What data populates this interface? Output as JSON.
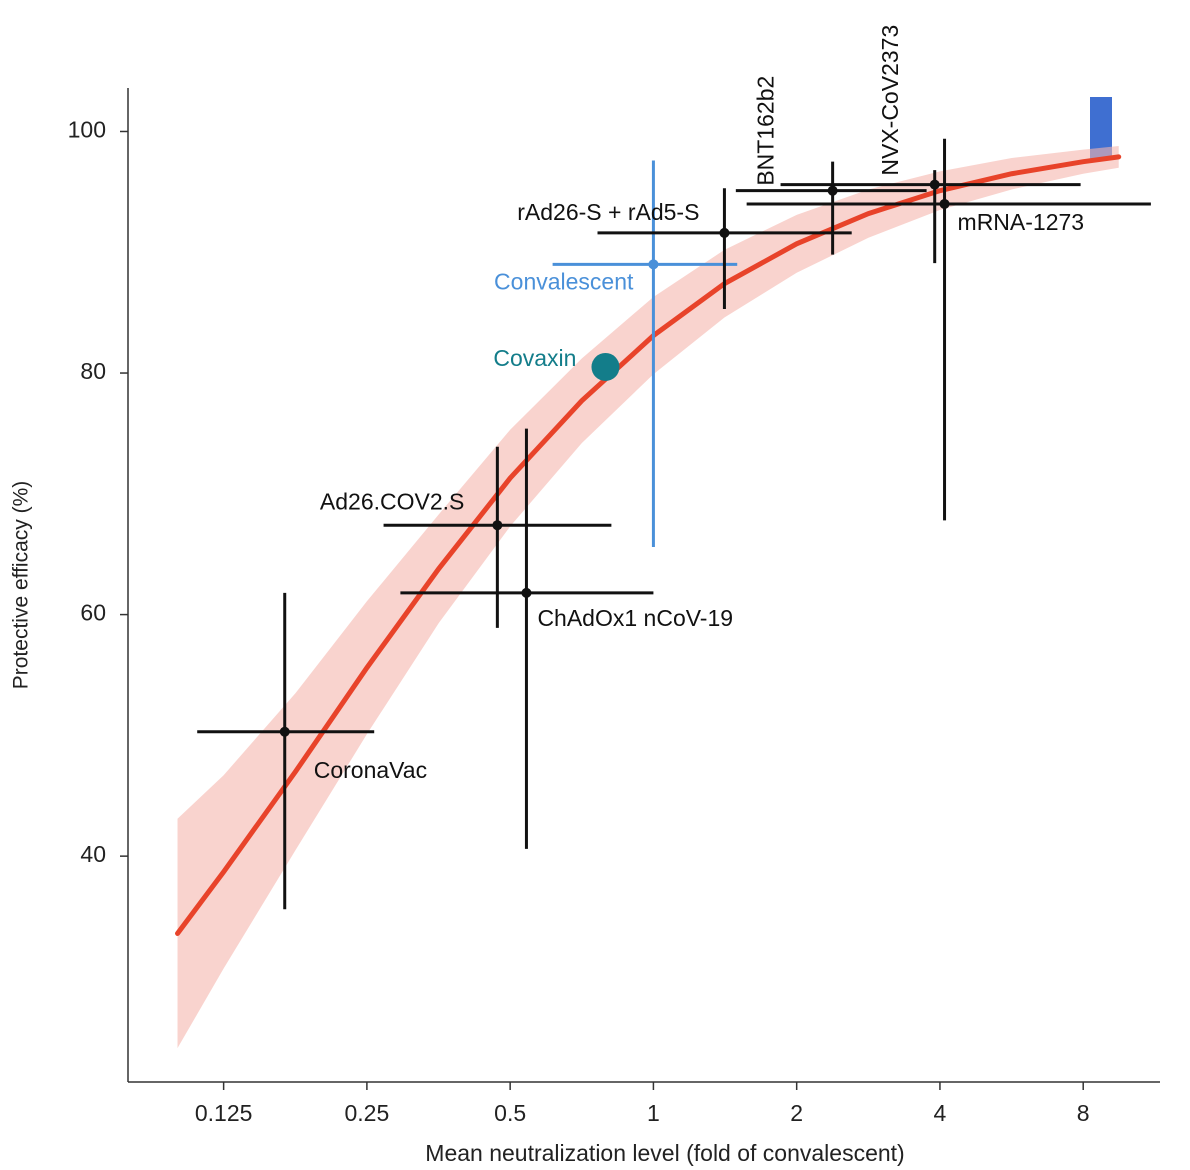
{
  "chart_data": {
    "type": "scatter",
    "x_label": "Mean neutralization level (fold of convalescent)",
    "y_label": "Protective efficacy (%)",
    "log_x": true,
    "xlim": [
      0.0787,
      11.6
    ],
    "ylim": [
      21.3,
      103.6
    ],
    "xticks": [
      0.125,
      0.25,
      0.5,
      1,
      2,
      4,
      8
    ],
    "yticks": [
      40,
      60,
      80,
      100
    ],
    "fit": {
      "color": "#e8432a",
      "band_color": "#f5b5ad",
      "x": [
        0.1,
        0.125,
        0.177,
        0.25,
        0.354,
        0.5,
        0.707,
        1,
        1.41,
        2,
        2.83,
        4,
        5.66,
        8,
        9.5
      ],
      "values": [
        33.6,
        38.7,
        47.0,
        55.6,
        63.8,
        71.3,
        77.7,
        83.1,
        87.4,
        90.7,
        93.2,
        95.1,
        96.5,
        97.5,
        97.9
      ],
      "lower": [
        24.1,
        30.7,
        40.5,
        50.1,
        59.3,
        67.3,
        74.2,
        79.9,
        84.6,
        88.3,
        91.2,
        93.5,
        95.2,
        96.5,
        97.0
      ],
      "upper": [
        43.1,
        46.7,
        53.5,
        61.1,
        68.3,
        75.3,
        81.2,
        86.3,
        90.2,
        93.1,
        95.2,
        96.7,
        97.8,
        98.5,
        98.8
      ]
    },
    "points": [
      {
        "name": "CoronaVac",
        "color": "#111111",
        "x": 0.168,
        "y": 50.3,
        "xerr": [
          0.11,
          0.259
        ],
        "yerr": [
          35.6,
          61.8
        ]
      },
      {
        "name": "Ad26.COV2.S",
        "color": "#111111",
        "x": 0.47,
        "y": 67.4,
        "xerr": [
          0.271,
          0.816
        ],
        "yerr": [
          58.9,
          73.9
        ]
      },
      {
        "name": "ChAdOx1 nCoV-19",
        "color": "#111111",
        "x": 0.541,
        "y": 61.8,
        "xerr": [
          0.294,
          1.0
        ],
        "yerr": [
          40.6,
          75.4
        ]
      },
      {
        "name": "Covaxin",
        "color": "#137d8a",
        "x": 0.793,
        "y": 80.5
      },
      {
        "name": "Convalescent",
        "color": "#4a90d9",
        "x": 1,
        "y": 89.0,
        "xerr": [
          0.614,
          1.5
        ],
        "yerr": [
          65.6,
          97.6
        ]
      },
      {
        "name": "rAd26-S + rAd5-S",
        "color": "#111111",
        "x": 1.41,
        "y": 91.6,
        "xerr": [
          0.763,
          2.61
        ],
        "yerr": [
          85.3,
          95.3
        ]
      },
      {
        "name": "BNT162b2",
        "color": "#111111",
        "x": 2.38,
        "y": 95.1,
        "xerr": [
          1.49,
          3.75
        ],
        "yerr": [
          89.8,
          97.5
        ]
      },
      {
        "name": "NVX-CoV2373",
        "color": "#111111",
        "x": 3.9,
        "y": 95.6,
        "xerr": [
          1.85,
          7.9
        ],
        "yerr": [
          89.1,
          96.8
        ]
      },
      {
        "name": "mRNA-1273",
        "color": "#111111",
        "x": 4.09,
        "y": 94.0,
        "xerr": [
          1.57,
          11.1
        ],
        "yerr": [
          67.8,
          99.4
        ]
      }
    ]
  }
}
